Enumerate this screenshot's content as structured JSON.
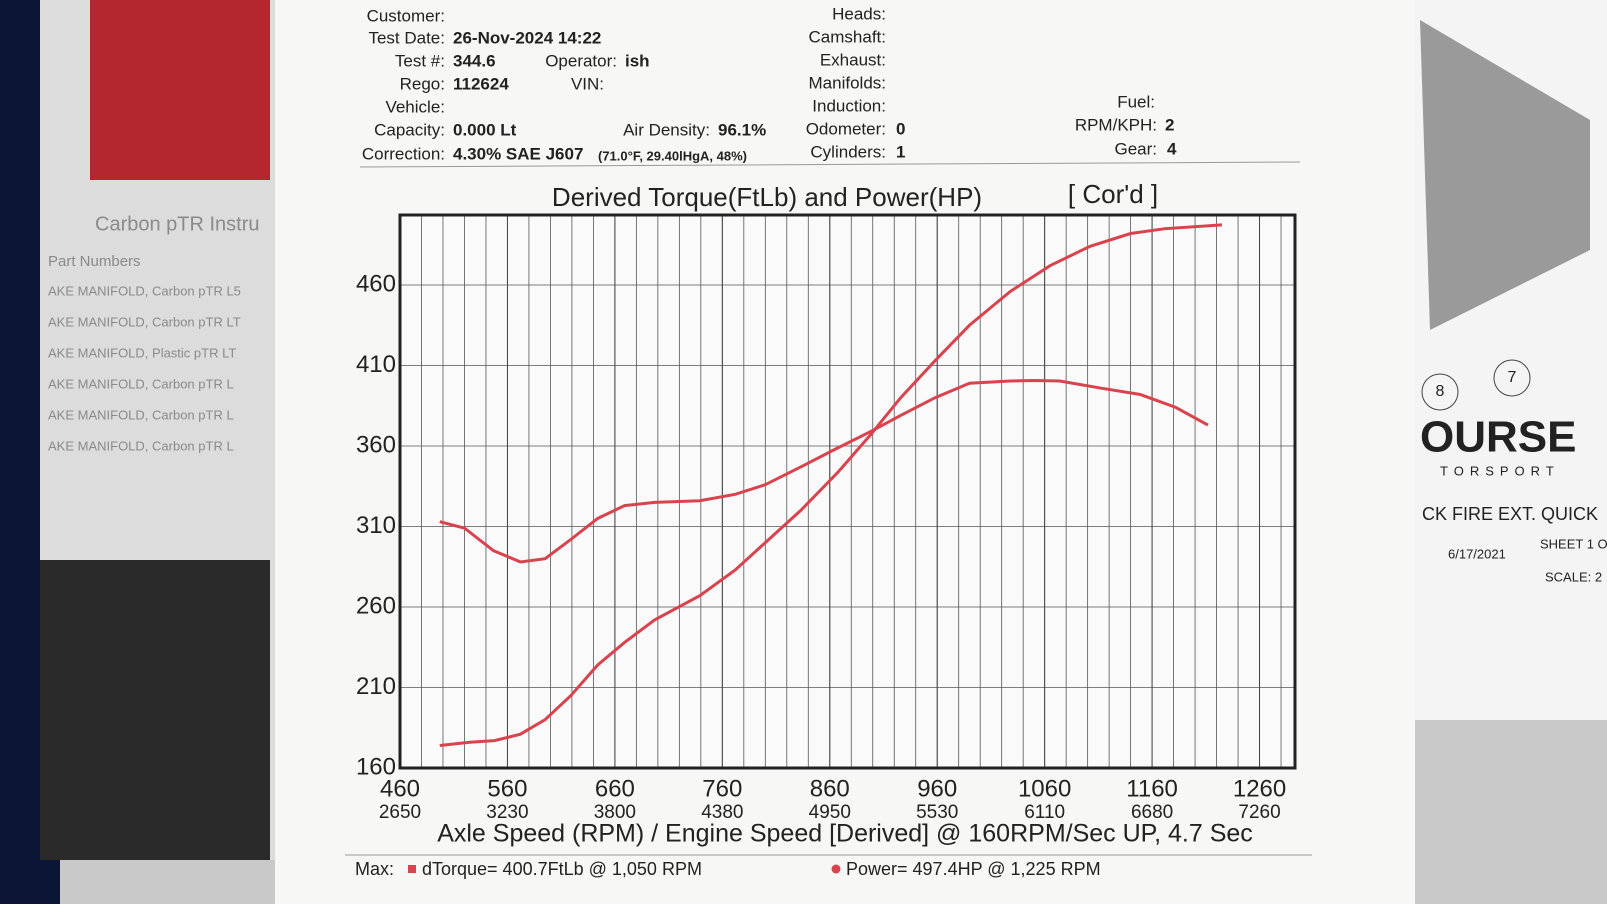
{
  "header": {
    "customer": "Customer:",
    "test_date_label": "Test Date:",
    "test_date": "26-Nov-2024 14:22",
    "test_no_label": "Test #:",
    "test_no": "344.6",
    "operator_label": "Operator:",
    "operator": "ish",
    "rego_label": "Rego:",
    "rego": "112624",
    "vin_label": "VIN:",
    "vehicle_label": "Vehicle:",
    "capacity_label": "Capacity:",
    "capacity": "0.000 Lt",
    "air_density_label": "Air Density:",
    "air_density": "96.1%",
    "correction_label": "Correction:",
    "correction": "4.30% SAE J607",
    "correction_note": "(71.0°F, 29.40lHgA, 48%)",
    "heads_label": "Heads:",
    "camshaft_label": "Camshaft:",
    "exhaust_label": "Exhaust:",
    "manifolds_label": "Manifolds:",
    "induction_label": "Induction:",
    "odometer_label": "Odometer:",
    "odometer": "0",
    "cylinders_label": "Cylinders:",
    "cylinders": "1",
    "fuel_label": "Fuel:",
    "rpm_kph_label": "RPM/KPH:",
    "rpm_kph": "2",
    "gear_label": "Gear:",
    "gear": "4"
  },
  "footer": {
    "max_label": "Max:",
    "torque_max": "dTorque= 400.7FtLb @ 1,050 RPM",
    "power_max": "Power= 497.4HP @ 1,225 RPM"
  },
  "background": {
    "brochure_title": "Carbon pTR Instru",
    "brochure_sub": "Part Numbers",
    "brochure_items": [
      "AKE MANIFOLD, Carbon pTR L5",
      "AKE MANIFOLD, Carbon pTR LT",
      "AKE MANIFOLD, Plastic pTR LT",
      "AKE MANIFOLD, Carbon pTR L",
      "AKE MANIFOLD, Carbon pTR L",
      "AKE MANIFOLD, Carbon pTR L"
    ],
    "drawing_brand": "OURSE",
    "drawing_sub": "TORSPORT",
    "drawing_title": "CK FIRE EXT. QUICK",
    "drawing_date": "6/17/2021",
    "drawing_sheet": "SHEET 1 O",
    "drawing_scale": "SCALE: 2",
    "callout_a": "8",
    "callout_b": "7"
  },
  "chart_data": {
    "type": "line",
    "title": "Derived Torque(FtLb) and Power(HP)",
    "tag": "[ Cor'd ]",
    "x_label": "Axle Speed (RPM) / Engine Speed [Derived] @ 160RPM/Sec UP, 4.7 Sec",
    "xlim": [
      460,
      1293
    ],
    "ylim": [
      160,
      503.5
    ],
    "xticks": [
      460,
      560,
      660,
      760,
      860,
      960,
      1060,
      1160,
      1260
    ],
    "x2ticks": [
      2650,
      3230,
      3800,
      4380,
      4950,
      5530,
      6110,
      6680,
      7260
    ],
    "yticks": [
      160,
      210,
      260,
      310,
      360,
      410,
      460
    ],
    "grid": true,
    "series": [
      {
        "color": "#d9434e",
        "x": [
          497,
          520,
          547,
          572,
          595,
          619,
          644,
          669,
          697,
          739,
          772,
          800,
          833,
          865,
          898,
          926,
          958,
          990,
          1028,
          1050,
          1074,
          1112,
          1149,
          1182,
          1212
        ],
        "values": [
          313,
          309,
          295,
          288,
          290,
          302,
          315,
          323,
          325,
          326,
          330,
          336,
          347,
          358,
          369,
          379,
          390,
          399,
          400.4,
          400.7,
          400.4,
          396,
          392,
          384,
          373
        ]
      },
      {
        "color": "#d9434e",
        "x": [
          497,
          525,
          548,
          572,
          595,
          619,
          644,
          669,
          697,
          739,
          772,
          800,
          833,
          868,
          898,
          926,
          958,
          990,
          1028,
          1065,
          1102,
          1140,
          1172,
          1225
        ],
        "values": [
          174,
          176,
          177,
          181,
          190,
          205,
          224,
          238,
          252,
          267,
          283,
          300,
          320,
          344,
          367,
          390,
          413,
          435,
          456,
          472,
          484,
          492,
          495,
          497.4
        ]
      }
    ]
  }
}
